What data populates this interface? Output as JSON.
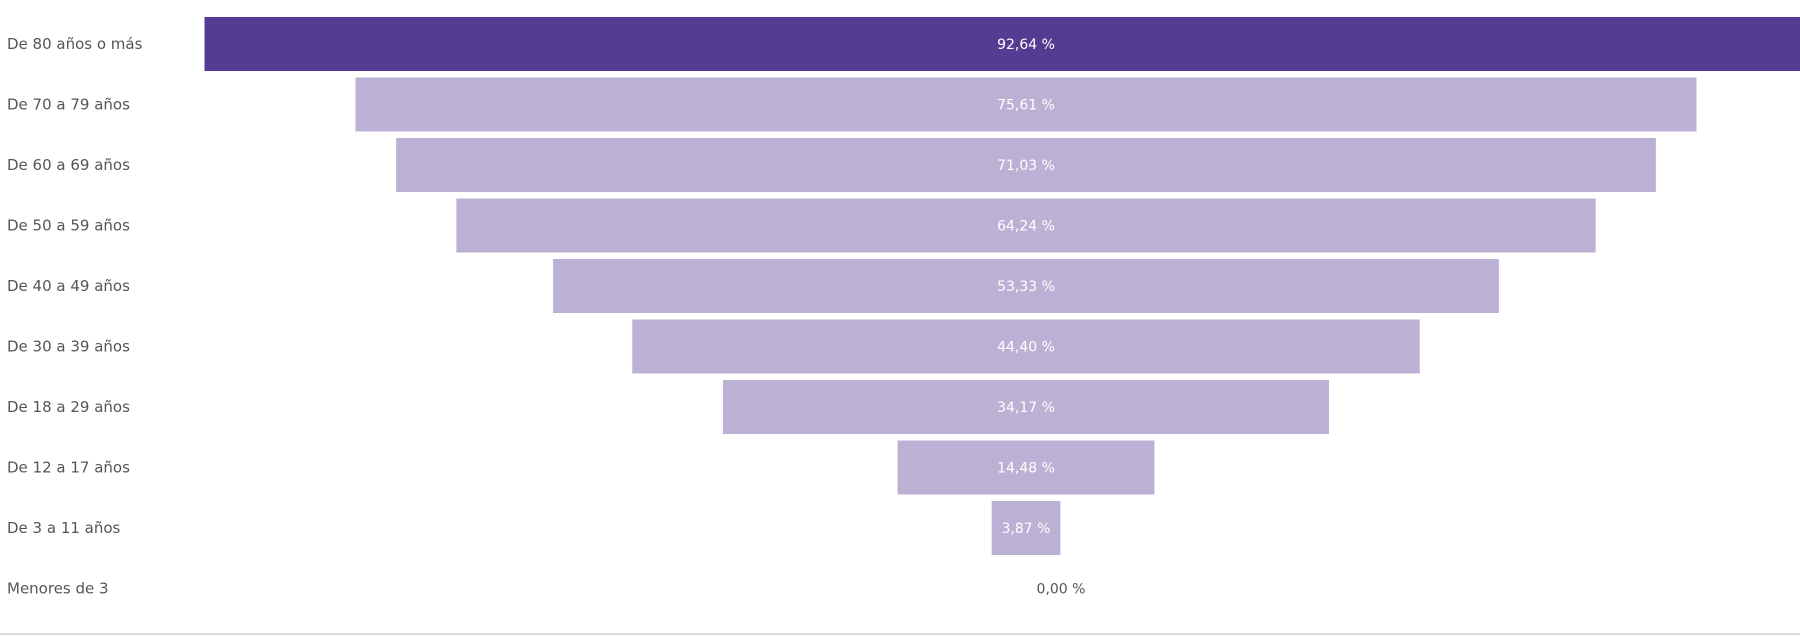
{
  "chart_data": {
    "type": "funnel",
    "categories": [
      "De 80 años o más",
      "De 70 a 79 años",
      "De 60 a 69 años",
      "De 50 a 59 años",
      "De 40 a 49 años",
      "De 30 a 39 años",
      "De 18 a 29 años",
      "De 12 a 17 años",
      "De 3 a 11 años",
      "Menores de 3"
    ],
    "values": [
      92.64,
      75.61,
      71.03,
      64.24,
      53.33,
      44.4,
      34.17,
      14.48,
      3.87,
      0.0
    ],
    "value_labels": [
      "92,64 %",
      "75,61 %",
      "71,03 %",
      "64,24 %",
      "53,33 %",
      "44,40 %",
      "34,17 %",
      "14,48 %",
      "3,87 %",
      "0,00 %"
    ],
    "highlighted_index": 0,
    "colors": {
      "highlight": "#553b91",
      "bar": "#bcb1d4",
      "label_on_bar": "#ffffff",
      "label_empty": "#555555",
      "category_text": "#555555"
    }
  }
}
